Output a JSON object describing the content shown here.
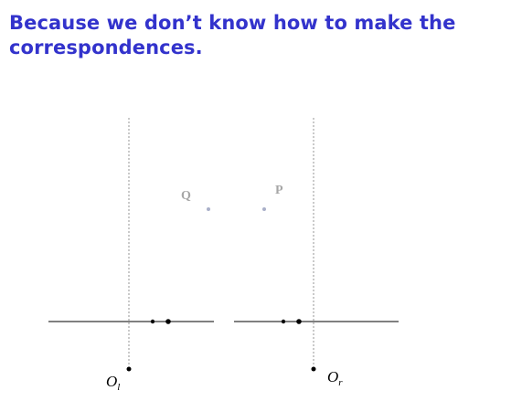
{
  "slide": {
    "title": "Because we don’t know how to make the correspondences."
  },
  "diagram": {
    "points": {
      "q_label": "Q",
      "p_label": "P"
    },
    "cameras": {
      "left_origin": {
        "base": "O",
        "sub": "l"
      },
      "right_origin": {
        "base": "O",
        "sub": "r"
      }
    }
  },
  "colors": {
    "title": "#3333cc",
    "point_label": "#a6a6a6",
    "point_marker": "#a9afc8",
    "lines": "#000000"
  }
}
